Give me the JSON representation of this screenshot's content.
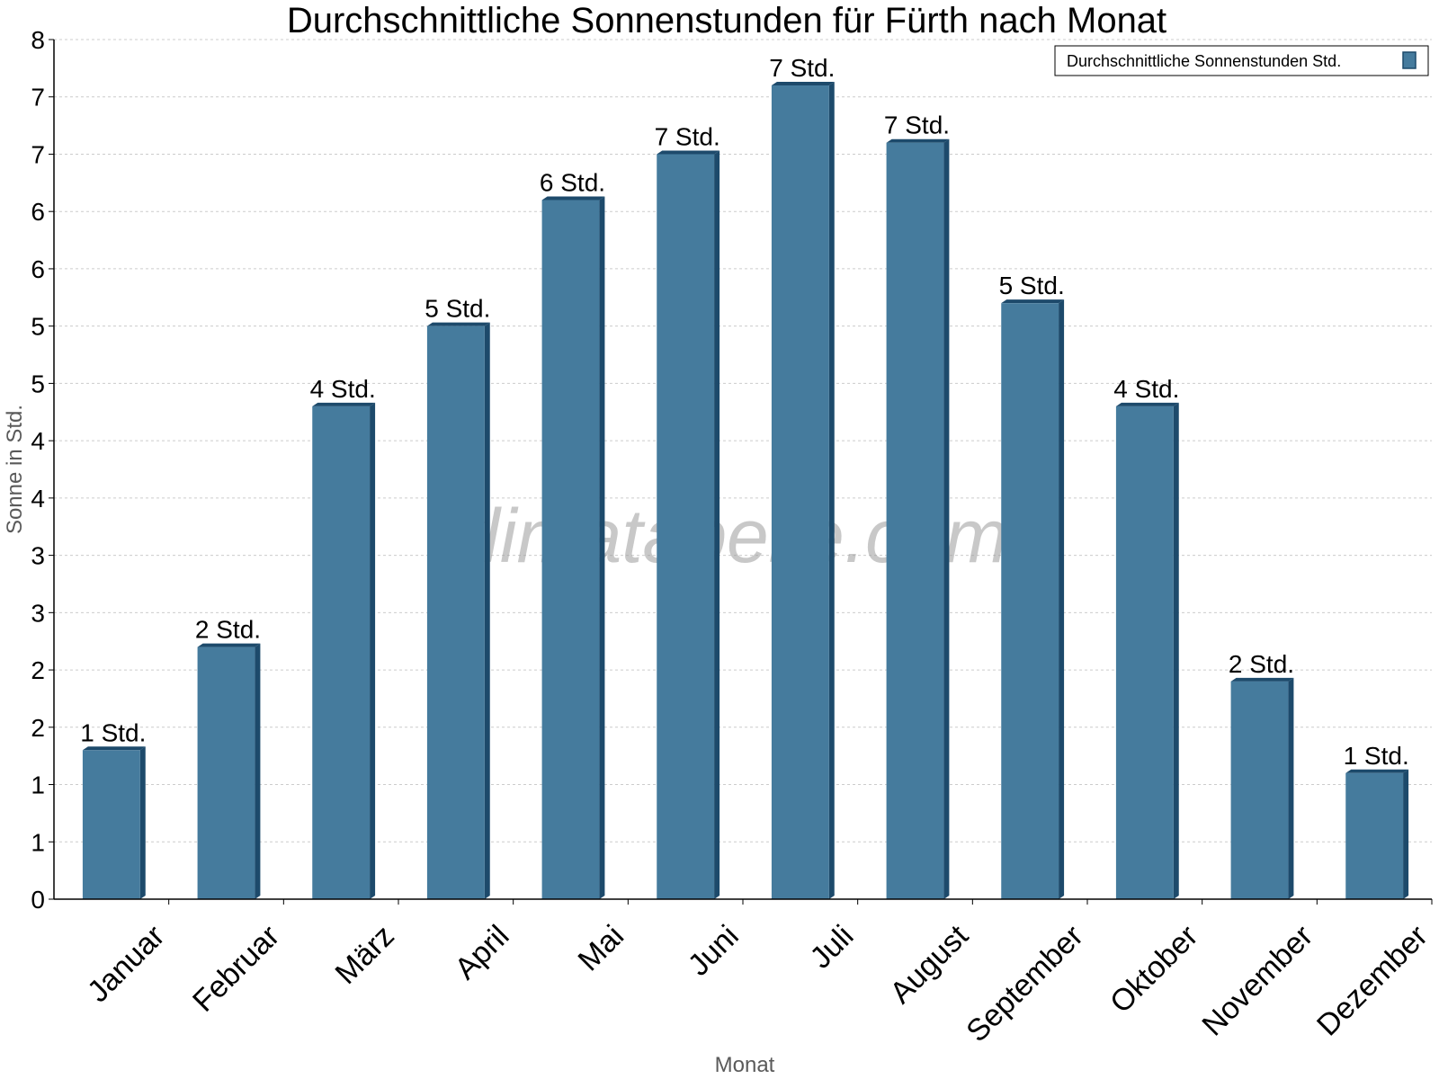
{
  "chart_data": {
    "type": "bar",
    "title": "Durchschnittliche Sonnenstunden für Fürth nach Monat",
    "xlabel": "Monat",
    "ylabel": "Sonne in Std.",
    "categories": [
      "Januar",
      "Februar",
      "März",
      "April",
      "Mai",
      "Juni",
      "Juli",
      "August",
      "September",
      "Oktober",
      "November",
      "Dezember"
    ],
    "series": [
      {
        "name": "Durchschnittliche Sonnenstunden Std.",
        "values": [
          1.3,
          2.2,
          4.3,
          5.0,
          6.1,
          6.5,
          7.1,
          6.6,
          5.2,
          4.3,
          1.9,
          1.1
        ],
        "data_labels": [
          "1 Std.",
          "2 Std.",
          "4 Std.",
          "5 Std.",
          "6 Std.",
          "7 Std.",
          "7 Std.",
          "7 Std.",
          "5 Std.",
          "4 Std.",
          "2 Std.",
          "1 Std."
        ]
      }
    ],
    "ylim": [
      0,
      7.5
    ],
    "ytick_values": [
      0,
      0.5,
      1,
      1.5,
      2,
      2.5,
      3,
      3.5,
      4,
      4.5,
      5,
      5.5,
      6,
      6.5,
      7,
      7.5
    ],
    "ytick_labels": [
      "0",
      "1",
      "1",
      "2",
      "2",
      "3",
      "3",
      "4",
      "4",
      "5",
      "5",
      "6",
      "6",
      "7",
      "7",
      "8"
    ],
    "grid": true,
    "legend_position": "top-right",
    "colors": {
      "bar": "#457b9d",
      "bar_side": "#1d4a6b",
      "grid": "#cccccc",
      "axis": "#000000"
    },
    "watermark": "klimatabelle.com"
  }
}
